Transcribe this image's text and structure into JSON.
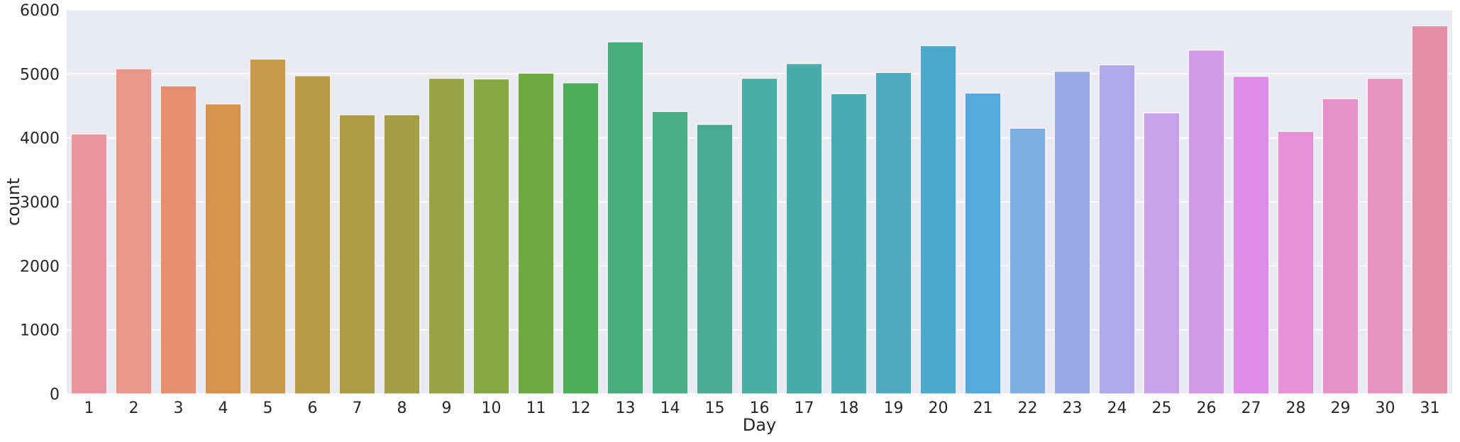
{
  "chart_data": {
    "type": "bar",
    "title": "",
    "xlabel": "Day",
    "ylabel": "count",
    "ylim": [
      0,
      6000
    ],
    "yticks": [
      0,
      1000,
      2000,
      3000,
      4000,
      5000,
      6000
    ],
    "grid": true,
    "legend": "none",
    "background_color": "#EAEAF2",
    "grid_color": "#FFFFFF",
    "categories": [
      "1",
      "2",
      "3",
      "4",
      "5",
      "6",
      "7",
      "8",
      "9",
      "10",
      "11",
      "12",
      "13",
      "14",
      "15",
      "16",
      "17",
      "18",
      "19",
      "20",
      "21",
      "22",
      "23",
      "24",
      "25",
      "26",
      "27",
      "28",
      "29",
      "30",
      "31"
    ],
    "values": [
      4060,
      5080,
      4810,
      4530,
      5230,
      4970,
      4360,
      4360,
      4930,
      4920,
      5010,
      4860,
      5500,
      4410,
      4210,
      4930,
      5160,
      4690,
      5020,
      5440,
      4700,
      4150,
      5040,
      5140,
      4390,
      5370,
      4960,
      4100,
      4610,
      4930,
      5750
    ],
    "colors": [
      "#EA949F",
      "#E8978A",
      "#E58F6F",
      "#D7924F",
      "#C59A4A",
      "#B89A4B",
      "#AC9B47",
      "#A39D47",
      "#96A447",
      "#87A747",
      "#6FA944",
      "#4CAE5B",
      "#48AD7C",
      "#49AE87",
      "#4AAB95",
      "#4AAFA3",
      "#4AACAA",
      "#4BABB3",
      "#4DAABF",
      "#4DA9CC",
      "#55AADD",
      "#7EAEE1",
      "#9DA9E6",
      "#B0A8E9",
      "#C8A2EB",
      "#D19AE7",
      "#DE8DE6",
      "#E791D5",
      "#E691C9",
      "#E693BF",
      "#E68FAB"
    ]
  }
}
